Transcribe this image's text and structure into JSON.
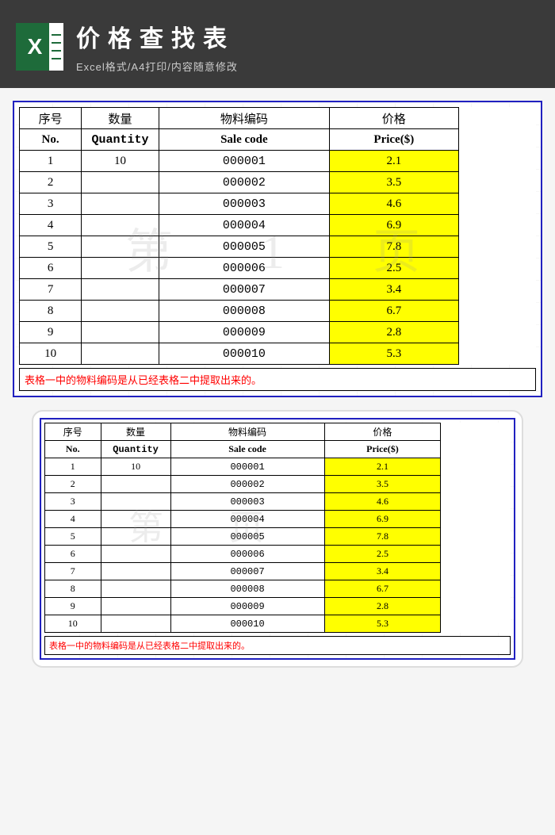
{
  "header": {
    "title": "价格查找表",
    "subtitle": "Excel格式/A4打印/内容随意修改",
    "icon_letter": "X"
  },
  "table": {
    "columns_cn": [
      "序号",
      "数量",
      "物料编码",
      "价格"
    ],
    "columns_en": [
      "No.",
      "Quantity",
      "Sale code",
      "Price($)"
    ],
    "rows": [
      {
        "no": "1",
        "qty": "10",
        "code": "000001",
        "price": "2.1"
      },
      {
        "no": "2",
        "qty": "",
        "code": "000002",
        "price": "3.5"
      },
      {
        "no": "3",
        "qty": "",
        "code": "000003",
        "price": "4.6"
      },
      {
        "no": "4",
        "qty": "",
        "code": "000004",
        "price": "6.9"
      },
      {
        "no": "5",
        "qty": "",
        "code": "000005",
        "price": "7.8"
      },
      {
        "no": "6",
        "qty": "",
        "code": "000006",
        "price": "2.5"
      },
      {
        "no": "7",
        "qty": "",
        "code": "000007",
        "price": "3.4"
      },
      {
        "no": "8",
        "qty": "",
        "code": "000008",
        "price": "6.7"
      },
      {
        "no": "9",
        "qty": "",
        "code": "000009",
        "price": "2.8"
      },
      {
        "no": "10",
        "qty": "",
        "code": "000010",
        "price": "5.3"
      }
    ],
    "note": "表格一中的物料编码是从已经表格二中提取出来的。",
    "watermark1": "第 1 页",
    "watermark2": "第   页",
    "highlight_color": "#ffff00",
    "border_color": "#2020c0",
    "note_color": "#ff0000"
  }
}
